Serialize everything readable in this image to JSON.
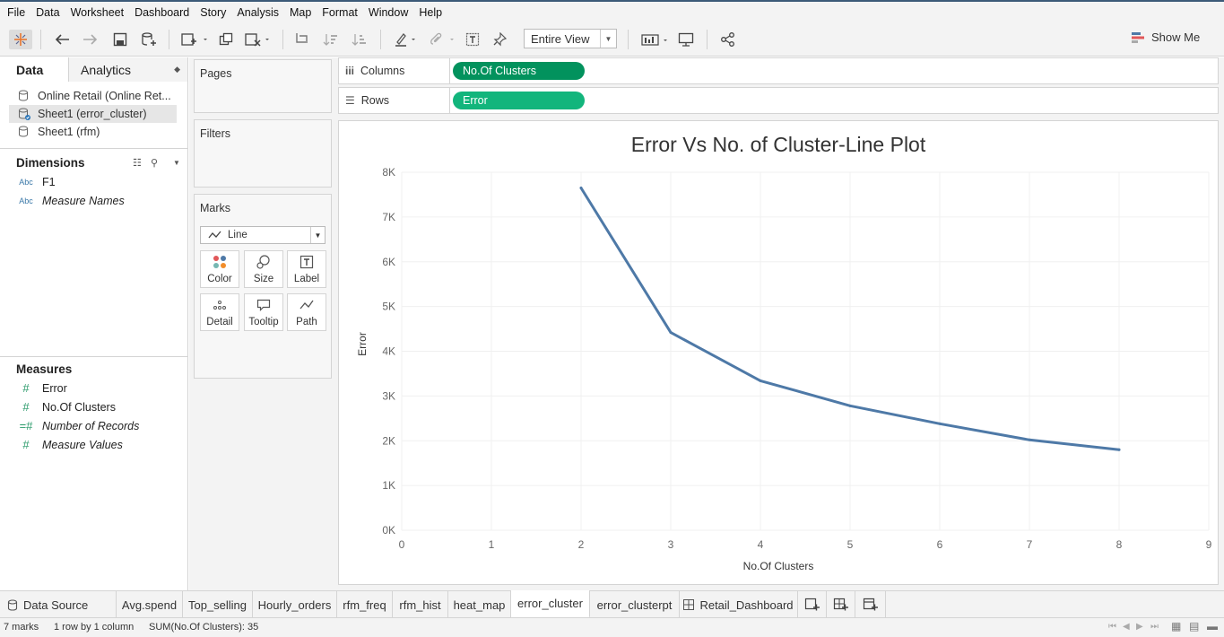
{
  "menu": [
    "File",
    "Data",
    "Worksheet",
    "Dashboard",
    "Story",
    "Analysis",
    "Map",
    "Format",
    "Window",
    "Help"
  ],
  "toolbar": {
    "view_select": "Entire View",
    "show_me": "Show Me"
  },
  "left_tabs": {
    "data": "Data",
    "analytics": "Analytics"
  },
  "datasources": [
    "Online Retail (Online Ret...",
    "Sheet1 (error_cluster)",
    "Sheet1 (rfm)"
  ],
  "dimensions": {
    "title": "Dimensions",
    "fields": [
      {
        "type": "Abc",
        "name": "F1"
      },
      {
        "type": "Abc",
        "name": "Measure Names"
      }
    ]
  },
  "measures": {
    "title": "Measures",
    "fields": [
      {
        "type": "#",
        "name": "Error"
      },
      {
        "type": "#",
        "name": "No.Of Clusters"
      },
      {
        "type": "=#",
        "name": "Number of Records"
      },
      {
        "type": "#",
        "name": "Measure Values"
      }
    ]
  },
  "cards": {
    "pages": "Pages",
    "filters": "Filters",
    "marks": "Marks",
    "mark_type": "Line",
    "mark_buttons": [
      "Color",
      "Size",
      "Label",
      "Detail",
      "Tooltip",
      "Path"
    ]
  },
  "shelves": {
    "columns_label": "Columns",
    "columns_pill": "No.Of Clusters",
    "rows_label": "Rows",
    "rows_pill": "Error"
  },
  "chart_data": {
    "type": "line",
    "title": "Error Vs No. of Cluster-Line Plot",
    "xlabel": "No.Of Clusters",
    "ylabel": "Error",
    "x": [
      2,
      3,
      4,
      5,
      6,
      7,
      8
    ],
    "series": [
      {
        "values": [
          7650,
          4420,
          3340,
          2780,
          2380,
          2020,
          1800
        ]
      }
    ],
    "xlim": [
      0,
      9
    ],
    "ylim": [
      0,
      8000
    ],
    "xticks": [
      "0",
      "1",
      "2",
      "3",
      "4",
      "5",
      "6",
      "7",
      "8",
      "9"
    ],
    "yticks": [
      "0K",
      "1K",
      "2K",
      "3K",
      "4K",
      "5K",
      "6K",
      "7K",
      "8K"
    ],
    "line_color": "#4e79a7",
    "grid": true
  },
  "sheet_tabs": [
    "Data Source",
    "Avg.spend",
    "Top_selling",
    "Hourly_orders",
    "rfm_freq",
    "rfm_hist",
    "heat_map",
    "error_cluster",
    "error_clusterpt",
    "Retail_Dashboard"
  ],
  "active_tab": "error_cluster",
  "status": {
    "marks": "7 marks",
    "rows": "1 row by 1 column",
    "sum": "SUM(No.Of Clusters): 35"
  },
  "colors": {
    "pill_columns": "#02925d",
    "pill_rows": "#12b57c",
    "accent": "#3c5a78"
  }
}
